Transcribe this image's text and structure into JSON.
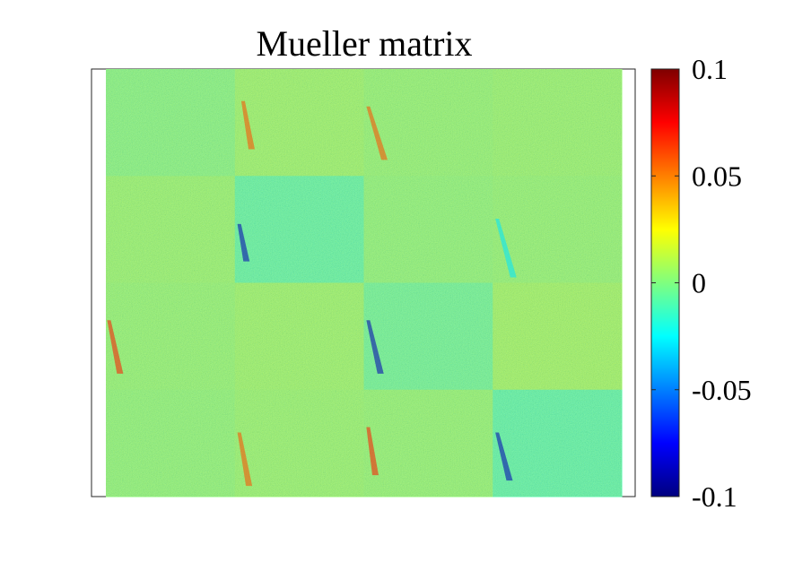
{
  "chart_data": {
    "type": "heatmap",
    "title": "Mueller matrix",
    "xlabel": "",
    "ylabel": "",
    "grid": "4x4",
    "colormap": "jet",
    "clim": [
      -0.1,
      0.1
    ],
    "colorbar": {
      "ticks": [
        0.1,
        0.05,
        0,
        -0.05,
        -0.1
      ],
      "tick_labels": [
        "0.1",
        "0.05",
        "0",
        "-0.05",
        "-0.1"
      ],
      "placement": "right"
    },
    "elements": [
      [
        0.0,
        0.005,
        0.003,
        0.004
      ],
      [
        0.004,
        -0.008,
        0.002,
        0.003
      ],
      [
        0.003,
        0.005,
        -0.005,
        0.006
      ],
      [
        0.002,
        0.004,
        0.003,
        -0.009
      ]
    ]
  }
}
